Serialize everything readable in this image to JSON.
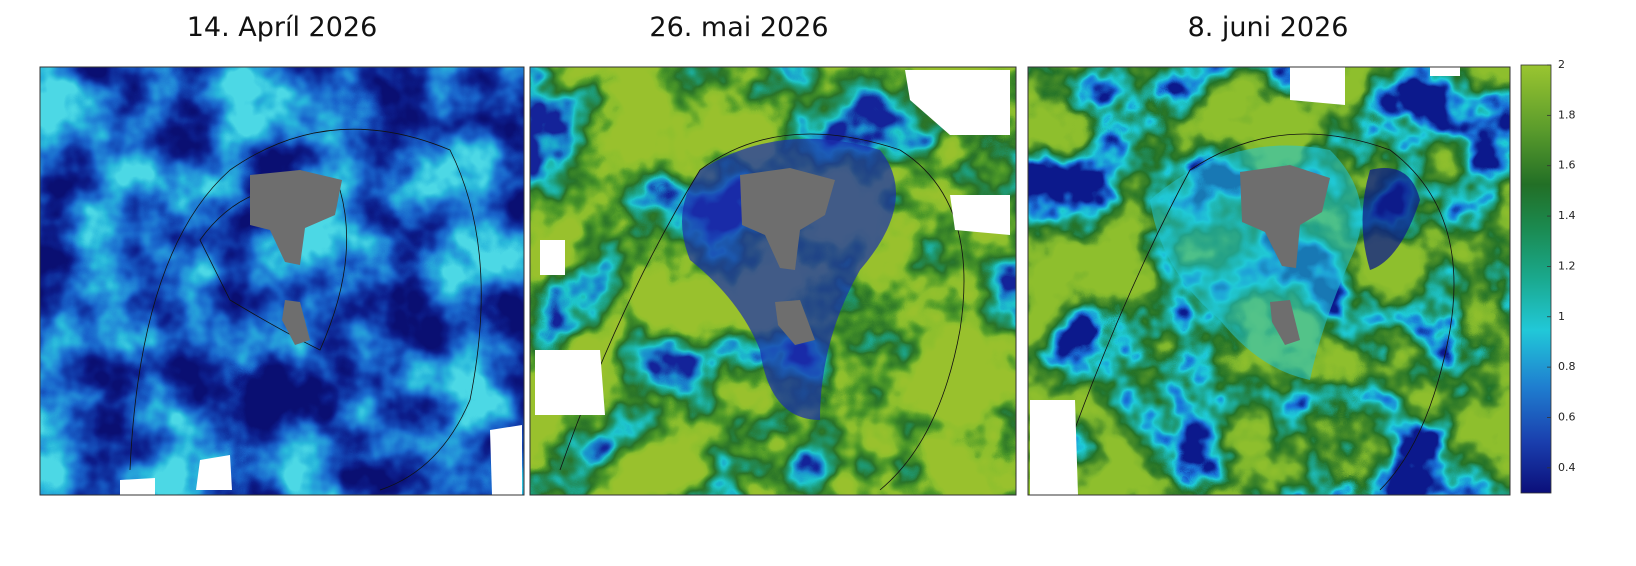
{
  "panels": [
    {
      "title": "14. Apríl 2026"
    },
    {
      "title": "26. mai 2026"
    },
    {
      "title": "8. juni 2026"
    }
  ],
  "colorbar": {
    "range": [
      0.3,
      2
    ],
    "ticks": [
      0.4,
      0.6,
      0.8,
      1,
      1.2,
      1.4,
      1.6,
      1.8,
      2
    ]
  }
}
